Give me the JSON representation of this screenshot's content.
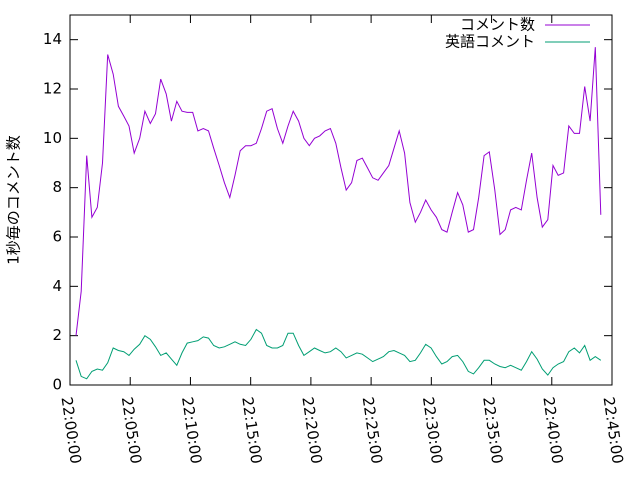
{
  "chart_data": {
    "type": "line",
    "ylabel": "1秒毎のコメント数",
    "xlim": [
      "22:00:00",
      "22:45:00"
    ],
    "xticks": [
      "22:00:00",
      "22:05:00",
      "22:10:00",
      "22:15:00",
      "22:20:00",
      "22:25:00",
      "22:30:00",
      "22:35:00",
      "22:40:00",
      "22:45:00"
    ],
    "ylim": [
      0,
      15
    ],
    "yticks": [
      0,
      2,
      4,
      6,
      8,
      10,
      12,
      14
    ],
    "legend": "top-right",
    "x": [
      "22:00:30",
      "22:00:56",
      "22:01:23",
      "22:01:49",
      "22:02:16",
      "22:02:42",
      "22:03:08",
      "22:03:35",
      "22:04:01",
      "22:04:28",
      "22:04:54",
      "22:05:20",
      "22:05:47",
      "22:06:13",
      "22:06:40",
      "22:07:06",
      "22:07:32",
      "22:07:59",
      "22:08:25",
      "22:08:52",
      "22:09:18",
      "22:09:44",
      "22:10:11",
      "22:10:37",
      "22:11:04",
      "22:11:30",
      "22:11:56",
      "22:12:23",
      "22:12:49",
      "22:13:16",
      "22:13:42",
      "22:14:08",
      "22:14:35",
      "22:15:01",
      "22:15:28",
      "22:15:54",
      "22:16:20",
      "22:16:47",
      "22:17:13",
      "22:17:40",
      "22:18:06",
      "22:18:32",
      "22:18:59",
      "22:19:25",
      "22:19:52",
      "22:20:18",
      "22:20:44",
      "22:21:11",
      "22:21:37",
      "22:22:04",
      "22:22:30",
      "22:22:56",
      "22:23:23",
      "22:23:49",
      "22:24:16",
      "22:24:42",
      "22:25:08",
      "22:25:35",
      "22:26:01",
      "22:26:28",
      "22:26:54",
      "22:27:20",
      "22:27:47",
      "22:28:13",
      "22:28:40",
      "22:29:06",
      "22:29:32",
      "22:29:59",
      "22:30:25",
      "22:30:52",
      "22:31:18",
      "22:31:44",
      "22:32:11",
      "22:32:37",
      "22:33:04",
      "22:33:30",
      "22:33:56",
      "22:34:23",
      "22:34:49",
      "22:35:16",
      "22:35:42",
      "22:36:08",
      "22:36:35",
      "22:37:01",
      "22:37:28",
      "22:37:54",
      "22:38:20",
      "22:38:47",
      "22:39:13",
      "22:39:40",
      "22:40:06",
      "22:40:32",
      "22:40:59",
      "22:41:25",
      "22:41:52",
      "22:42:18",
      "22:42:44",
      "22:43:11",
      "22:43:37",
      "22:44:04"
    ],
    "series": [
      {
        "name": "コメント数",
        "color": "#9400d3",
        "values": [
          2,
          3.8,
          9.3,
          6.8,
          7.2,
          9,
          13.4,
          12.6,
          11.3,
          10.9,
          10.5,
          9.4,
          10,
          11.1,
          10.6,
          11,
          12.4,
          11.8,
          10.7,
          11.5,
          11.1,
          11.05,
          11.05,
          10.3,
          10.4,
          10.3,
          9.6,
          8.9,
          8.2,
          7.6,
          8.5,
          9.5,
          9.7,
          9.7,
          9.8,
          10.4,
          11.1,
          11.2,
          10.4,
          9.8,
          10.5,
          11.1,
          10.7,
          10,
          9.7,
          10,
          10.1,
          10.3,
          10.4,
          9.8,
          8.8,
          7.9,
          8.2,
          9.1,
          9.2,
          8.8,
          8.4,
          8.3,
          8.6,
          8.9,
          9.6,
          10.3,
          9.4,
          7.4,
          6.6,
          7,
          7.5,
          7.1,
          6.8,
          6.3,
          6.2,
          7,
          7.8,
          7.3,
          6.2,
          6.3,
          7.6,
          9.3,
          9.45,
          7.9,
          6.1,
          6.3,
          7.1,
          7.2,
          7.1,
          8.3,
          9.4,
          7.6,
          6.4,
          6.7,
          8.9,
          8.5,
          8.6,
          10.5,
          10.2,
          10.2,
          12.1,
          10.7,
          13.7,
          6.9
        ]
      },
      {
        "name": "英語コメント",
        "color": "#009e73",
        "values": [
          1,
          0.35,
          0.25,
          0.55,
          0.65,
          0.6,
          0.9,
          1.5,
          1.4,
          1.35,
          1.2,
          1.45,
          1.65,
          2,
          1.85,
          1.55,
          1.2,
          1.3,
          1.05,
          0.8,
          1.3,
          1.7,
          1.75,
          1.8,
          1.95,
          1.9,
          1.6,
          1.5,
          1.55,
          1.65,
          1.75,
          1.65,
          1.6,
          1.85,
          2.25,
          2.1,
          1.6,
          1.5,
          1.5,
          1.6,
          2.1,
          2.1,
          1.6,
          1.2,
          1.35,
          1.5,
          1.4,
          1.3,
          1.35,
          1.5,
          1.35,
          1.1,
          1.2,
          1.3,
          1.25,
          1.1,
          0.95,
          1.05,
          1.15,
          1.35,
          1.4,
          1.3,
          1.2,
          0.95,
          1,
          1.3,
          1.65,
          1.5,
          1.15,
          0.85,
          0.95,
          1.15,
          1.2,
          0.95,
          0.55,
          0.45,
          0.7,
          1,
          1,
          0.85,
          0.75,
          0.7,
          0.8,
          0.7,
          0.6,
          0.95,
          1.35,
          1.05,
          0.65,
          0.4,
          0.7,
          0.85,
          0.95,
          1.35,
          1.5,
          1.3,
          1.6,
          1,
          1.15,
          1
        ]
      }
    ]
  }
}
